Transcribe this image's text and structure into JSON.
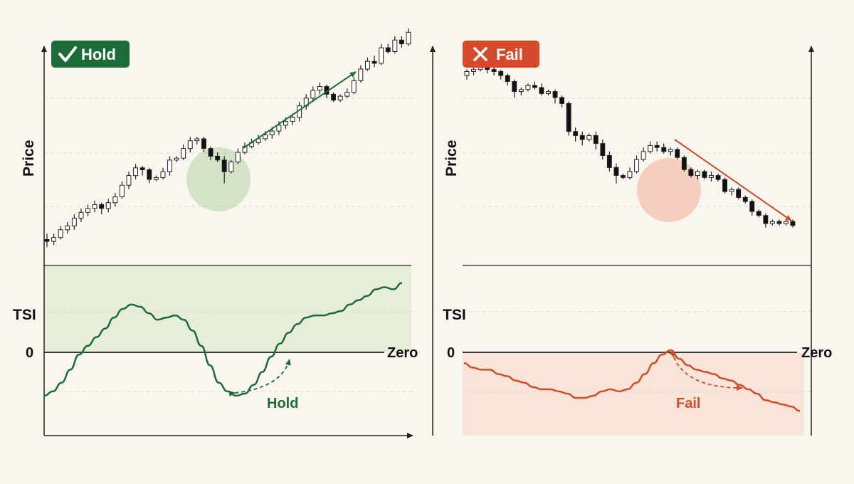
{
  "colors": {
    "background": "#f8f6ee",
    "hold_green": "#1e6b3a",
    "hold_fill": "#e6eed8",
    "fail_red": "#d64a2c",
    "fail_fill": "#f8e4d8",
    "axis": "#222222",
    "grid": "#dedbd2",
    "candle_up": "#ffffff",
    "candle_down": "#111111"
  },
  "chart_data": [
    {
      "type": "candlestick_with_indicator",
      "badge": {
        "label": "Hold",
        "icon": "check-icon",
        "color": "#1e6b3a"
      },
      "price_ylabel": "Price",
      "indicator_ylabel": "TSI",
      "zero_tick": "0",
      "zero_label": "Zero",
      "price_range": [
        0,
        100
      ],
      "tsi_range": [
        -40,
        40
      ],
      "candles": [
        [
          5,
          4,
          8,
          1
        ],
        [
          4,
          6,
          8,
          2
        ],
        [
          6,
          10,
          12,
          5
        ],
        [
          10,
          12,
          14,
          8
        ],
        [
          12,
          16,
          18,
          10
        ],
        [
          16,
          19,
          21,
          14
        ],
        [
          19,
          21,
          23,
          17
        ],
        [
          21,
          23,
          25,
          19
        ],
        [
          23,
          21,
          24,
          18
        ],
        [
          21,
          24,
          26,
          19
        ],
        [
          24,
          27,
          29,
          22
        ],
        [
          27,
          33,
          35,
          26
        ],
        [
          33,
          38,
          40,
          31
        ],
        [
          38,
          42,
          44,
          36
        ],
        [
          42,
          41,
          43,
          38
        ],
        [
          41,
          36,
          42,
          34
        ],
        [
          36,
          37,
          38,
          35
        ],
        [
          37,
          40,
          42,
          36
        ],
        [
          40,
          46,
          48,
          38
        ],
        [
          46,
          47,
          48,
          45
        ],
        [
          47,
          52,
          54,
          46
        ],
        [
          52,
          56,
          58,
          50
        ],
        [
          56,
          57,
          58,
          54
        ],
        [
          57,
          52,
          58,
          50
        ],
        [
          52,
          48,
          53,
          46
        ],
        [
          48,
          46,
          50,
          45
        ],
        [
          46,
          40,
          48,
          34
        ],
        [
          40,
          45,
          46,
          39
        ],
        [
          45,
          50,
          52,
          44
        ],
        [
          50,
          53,
          55,
          49
        ],
        [
          53,
          55,
          57,
          52
        ],
        [
          55,
          57,
          59,
          54
        ],
        [
          57,
          59,
          61,
          56
        ],
        [
          59,
          61,
          63,
          57
        ],
        [
          61,
          64,
          66,
          59
        ],
        [
          64,
          66,
          68,
          62
        ],
        [
          66,
          68,
          70,
          64
        ],
        [
          68,
          74,
          76,
          66
        ],
        [
          74,
          78,
          80,
          72
        ],
        [
          78,
          82,
          84,
          76
        ],
        [
          82,
          84,
          86,
          80
        ],
        [
          84,
          80,
          85,
          78
        ],
        [
          80,
          77,
          81,
          76
        ],
        [
          77,
          79,
          80,
          76
        ],
        [
          79,
          81,
          83,
          78
        ],
        [
          81,
          87,
          89,
          80
        ],
        [
          87,
          93,
          95,
          86
        ],
        [
          93,
          97,
          99,
          92
        ],
        [
          97,
          96,
          100,
          94
        ],
        [
          96,
          104,
          106,
          95
        ],
        [
          104,
          102,
          106,
          101
        ],
        [
          102,
          108,
          110,
          101
        ],
        [
          108,
          106,
          110,
          104
        ],
        [
          106,
          112,
          114,
          105
        ]
      ],
      "tsi": [
        -20,
        -18,
        -14,
        -8,
        -1,
        3,
        7,
        11,
        16,
        20,
        22,
        21,
        18,
        15,
        16,
        17,
        15,
        10,
        3,
        -6,
        -14,
        -18,
        -20,
        -19,
        -15,
        -9,
        -2,
        4,
        9,
        13,
        16,
        17,
        17,
        18,
        19,
        22,
        24,
        26,
        29,
        30,
        29,
        32
      ],
      "highlight": {
        "from": 23,
        "to": 28
      },
      "annotation_label": "Hold"
    },
    {
      "type": "candlestick_with_indicator",
      "badge": {
        "label": "Fail",
        "icon": "x-icon",
        "color": "#d64a2c"
      },
      "price_ylabel": "Price",
      "indicator_ylabel": "TSI",
      "zero_tick": "0",
      "zero_label": "Zero",
      "price_range": [
        -5,
        100
      ],
      "tsi_range": [
        -40,
        40
      ],
      "candles": [
        [
          90,
          92,
          93,
          88
        ],
        [
          92,
          93,
          95,
          90
        ],
        [
          93,
          94,
          97,
          92
        ],
        [
          94,
          93,
          95,
          91
        ],
        [
          93,
          92,
          94,
          90
        ],
        [
          92,
          90,
          93,
          88
        ],
        [
          90,
          87,
          91,
          85
        ],
        [
          87,
          82,
          88,
          79
        ],
        [
          82,
          83,
          84,
          80
        ],
        [
          83,
          85,
          86,
          82
        ],
        [
          85,
          84,
          87,
          83
        ],
        [
          84,
          81,
          86,
          80
        ],
        [
          81,
          82,
          83,
          80
        ],
        [
          82,
          79,
          83,
          76
        ],
        [
          79,
          76,
          80,
          74
        ],
        [
          76,
          62,
          77,
          60
        ],
        [
          62,
          60,
          64,
          57
        ],
        [
          60,
          58,
          62,
          55
        ],
        [
          58,
          60,
          61,
          57
        ],
        [
          60,
          56,
          62,
          53
        ],
        [
          56,
          50,
          58,
          48
        ],
        [
          50,
          44,
          52,
          42
        ],
        [
          44,
          40,
          46,
          36
        ],
        [
          40,
          39,
          41,
          38
        ],
        [
          39,
          42,
          44,
          38
        ],
        [
          42,
          48,
          50,
          41
        ],
        [
          48,
          52,
          54,
          47
        ],
        [
          52,
          55,
          57,
          51
        ],
        [
          55,
          54,
          57,
          52
        ],
        [
          54,
          52,
          56,
          51
        ],
        [
          52,
          53,
          54,
          50
        ],
        [
          53,
          49,
          54,
          48
        ],
        [
          49,
          43,
          50,
          42
        ],
        [
          43,
          40,
          44,
          39
        ],
        [
          40,
          42,
          43,
          38
        ],
        [
          42,
          39,
          43,
          38
        ],
        [
          39,
          40,
          42,
          37
        ],
        [
          40,
          38,
          41,
          37
        ],
        [
          38,
          32,
          39,
          31
        ],
        [
          32,
          33,
          34,
          30
        ],
        [
          33,
          29,
          34,
          28
        ],
        [
          29,
          27,
          30,
          26
        ],
        [
          27,
          22,
          28,
          20
        ],
        [
          22,
          20,
          23,
          19
        ],
        [
          20,
          16,
          21,
          14
        ],
        [
          16,
          17,
          18,
          15
        ],
        [
          17,
          16,
          18,
          15
        ],
        [
          16,
          17,
          18,
          15
        ],
        [
          17,
          15,
          18,
          14
        ]
      ],
      "tsi": [
        -5,
        -7,
        -8,
        -8,
        -10,
        -11,
        -13,
        -14,
        -16,
        -17,
        -17,
        -18,
        -19,
        -21,
        -21,
        -20,
        -18,
        -17,
        -18,
        -17,
        -14,
        -10,
        -5,
        -1,
        1,
        -3,
        -6,
        -8,
        -9,
        -10,
        -12,
        -13,
        -15,
        -17,
        -19,
        -22,
        -23,
        -24,
        -25,
        -27
      ],
      "highlight": {
        "from": 24,
        "to": 30
      },
      "annotation_label": "Fail"
    }
  ]
}
